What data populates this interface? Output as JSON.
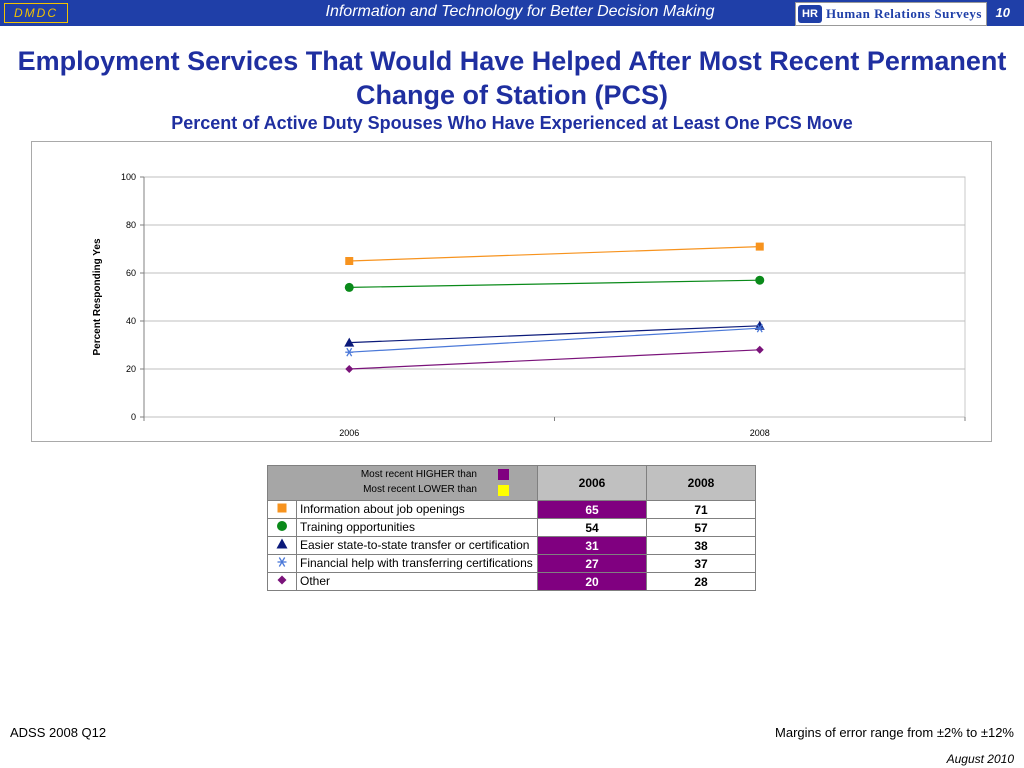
{
  "banner": {
    "org": "DMDC",
    "tagline": "Information and Technology for Better Decision Making",
    "logo_mark": "HR",
    "logo_text": "Human Relations Surveys",
    "page_number": "10"
  },
  "title": "Employment Services That Would Have Helped After Most Recent Permanent Change of Station (PCS)",
  "subtitle": "Percent of Active Duty Spouses Who Have Experienced at Least One PCS Move",
  "chart_data": {
    "type": "line",
    "x": [
      "2006",
      "2008"
    ],
    "ylabel": "Percent Responding Yes",
    "xlabel": "",
    "ylim": [
      0,
      100
    ],
    "yticks": [
      0,
      20,
      40,
      60,
      80,
      100
    ],
    "grid": true,
    "series": [
      {
        "name": "Information about job openings",
        "values": [
          65,
          71
        ],
        "color": "#f7931e",
        "marker": "square"
      },
      {
        "name": "Training opportunities",
        "values": [
          54,
          57
        ],
        "color": "#0a8a1a",
        "marker": "circle"
      },
      {
        "name": "Easier state-to-state transfer or certification",
        "values": [
          31,
          38
        ],
        "color": "#0b1a7a",
        "marker": "triangle"
      },
      {
        "name": "Financial help with transferring certifications",
        "values": [
          27,
          37
        ],
        "color": "#4a78d8",
        "marker": "asterisk"
      },
      {
        "name": "Other",
        "values": [
          20,
          28
        ],
        "color": "#7a137a",
        "marker": "diamond"
      }
    ]
  },
  "table": {
    "higher_label": "Most recent HIGHER than",
    "lower_label": "Most recent LOWER than",
    "higher_color": "#800080",
    "lower_color": "#ffff00",
    "col_2006": "2006",
    "col_2008": "2008",
    "rows": [
      {
        "label": "Information about job openings",
        "v2006": "65",
        "v2008": "71",
        "highlight2006": true
      },
      {
        "label": "Training opportunities",
        "v2006": "54",
        "v2008": "57",
        "highlight2006": false
      },
      {
        "label": "Easier state-to-state transfer or certification",
        "v2006": "31",
        "v2008": "38",
        "highlight2006": true
      },
      {
        "label": "Financial help with transferring certifications",
        "v2006": "27",
        "v2008": "37",
        "highlight2006": true
      },
      {
        "label": "Other",
        "v2006": "20",
        "v2008": "28",
        "highlight2006": true
      }
    ]
  },
  "footer": {
    "source": "ADSS 2008 Q12",
    "margin_note": "Margins of error range from ±2% to ±12%",
    "date": "August 2010"
  }
}
